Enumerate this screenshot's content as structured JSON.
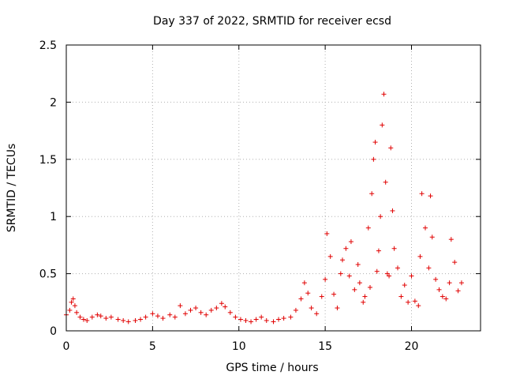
{
  "chart_data": {
    "type": "scatter",
    "title": "Day 337 of 2022, SRMTID for receiver ecsd",
    "xlabel": "GPS time / hours",
    "ylabel": "SRMTID / TECUs",
    "xlim": [
      0,
      24
    ],
    "ylim": [
      0,
      2.5
    ],
    "xticks": [
      0,
      5,
      10,
      15,
      20
    ],
    "yticks": [
      0,
      0.5,
      1,
      1.5,
      2,
      2.5
    ],
    "ytick_labels": [
      "0",
      "0.5",
      "1",
      "1.5",
      "2",
      "2.5"
    ],
    "grid": true,
    "marker": "+",
    "color": "#e00000",
    "series": [
      {
        "name": "SRMTID",
        "x": [
          0.0,
          0.2,
          0.3,
          0.4,
          0.5,
          0.6,
          0.8,
          1.0,
          1.2,
          1.5,
          1.8,
          2.0,
          2.3,
          2.6,
          3.0,
          3.3,
          3.6,
          4.0,
          4.3,
          4.6,
          5.0,
          5.3,
          5.6,
          6.0,
          6.3,
          6.6,
          6.9,
          7.2,
          7.5,
          7.8,
          8.1,
          8.4,
          8.7,
          9.0,
          9.2,
          9.5,
          9.8,
          10.1,
          10.4,
          10.7,
          11.0,
          11.3,
          11.6,
          12.0,
          12.3,
          12.6,
          13.0,
          13.3,
          13.6,
          13.8,
          14.0,
          14.2,
          14.5,
          14.8,
          15.0,
          15.1,
          15.3,
          15.5,
          15.7,
          15.9,
          16.0,
          16.2,
          16.4,
          16.5,
          16.7,
          16.9,
          17.0,
          17.2,
          17.3,
          17.5,
          17.6,
          17.7,
          17.8,
          17.9,
          18.0,
          18.1,
          18.2,
          18.3,
          18.4,
          18.5,
          18.6,
          18.7,
          18.8,
          18.9,
          19.0,
          19.2,
          19.4,
          19.6,
          19.8,
          20.0,
          20.2,
          20.4,
          20.5,
          20.6,
          20.8,
          21.0,
          21.1,
          21.2,
          21.4,
          21.6,
          21.8,
          22.0,
          22.2,
          22.3,
          22.5,
          22.7,
          22.9
        ],
        "y": [
          0.14,
          0.18,
          0.25,
          0.28,
          0.22,
          0.16,
          0.12,
          0.1,
          0.09,
          0.12,
          0.14,
          0.13,
          0.11,
          0.12,
          0.1,
          0.09,
          0.08,
          0.09,
          0.1,
          0.12,
          0.15,
          0.13,
          0.11,
          0.14,
          0.12,
          0.22,
          0.15,
          0.18,
          0.2,
          0.16,
          0.14,
          0.18,
          0.2,
          0.24,
          0.21,
          0.16,
          0.12,
          0.1,
          0.09,
          0.08,
          0.1,
          0.12,
          0.09,
          0.08,
          0.1,
          0.11,
          0.12,
          0.18,
          0.28,
          0.42,
          0.33,
          0.2,
          0.15,
          0.3,
          0.45,
          0.85,
          0.65,
          0.32,
          0.2,
          0.5,
          0.62,
          0.72,
          0.48,
          0.78,
          0.36,
          0.58,
          0.42,
          0.25,
          0.3,
          0.9,
          0.38,
          1.2,
          1.5,
          1.65,
          0.52,
          0.7,
          1.0,
          1.8,
          2.07,
          1.3,
          0.5,
          0.48,
          1.6,
          1.05,
          0.72,
          0.55,
          0.3,
          0.4,
          0.25,
          0.48,
          0.26,
          0.22,
          0.65,
          1.2,
          0.9,
          0.55,
          1.18,
          0.82,
          0.45,
          0.36,
          0.3,
          0.28,
          0.42,
          0.8,
          0.6,
          0.35,
          0.42
        ]
      }
    ]
  }
}
